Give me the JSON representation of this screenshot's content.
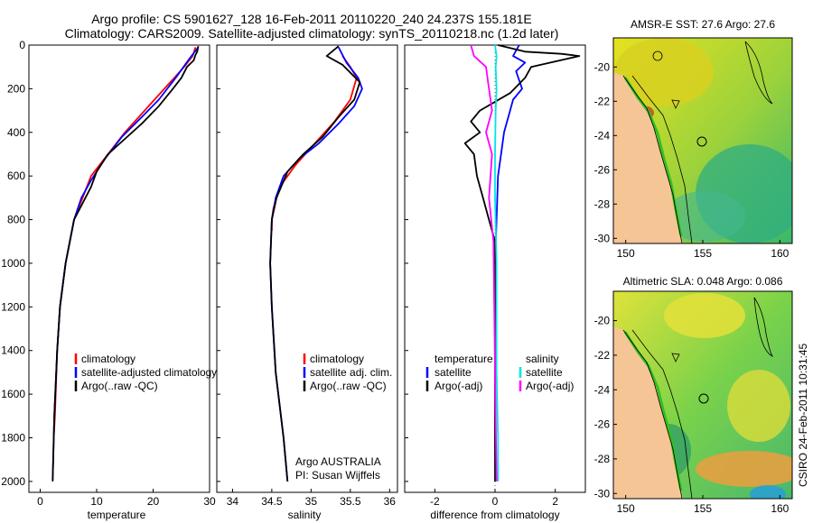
{
  "title": {
    "line1": "Argo profile: CS 5901627_128 16-Feb-2011 20110220_240 24.237S 155.181E",
    "line2": "Climatology: CARS2009. Satellite-adjusted climatology: synTS_20110218.nc (1.2d later)"
  },
  "side_stamp": "CSIRO 24-Feb-2011 10:31:45",
  "colors": {
    "climatology": "#ff0000",
    "satellite": "#0000ff",
    "argo": "#000000",
    "salinity_satellite": "#00e5e5",
    "salinity_argo_adj": "#ff00ff",
    "land": "#f5c596"
  },
  "chart_data": [
    {
      "id": "temperature",
      "type": "line",
      "xlabel": "temperature",
      "xlim": [
        -2,
        30
      ],
      "xticks": [
        "0",
        "10",
        "20",
        "30"
      ],
      "xtick_values": [
        0,
        10,
        20,
        30
      ],
      "ylim": [
        0,
        2050
      ],
      "yticks": [
        "0",
        "200",
        "400",
        "600",
        "800",
        "1000",
        "1200",
        "1400",
        "1600",
        "1800",
        "2000"
      ],
      "ytick_values": [
        0,
        200,
        400,
        600,
        800,
        1000,
        1200,
        1400,
        1600,
        1800,
        2000
      ],
      "legend": [
        "climatology",
        "satellite-adjusted climatology",
        "Argo(..raw -QC)"
      ],
      "series": [
        {
          "name": "climatology",
          "color": "#ff0000",
          "x": [
            27.5,
            27.0,
            25.5,
            22.0,
            18.5,
            15.0,
            12.0,
            9.0,
            7.5,
            6.0,
            4.5,
            3.5,
            3.0,
            2.6,
            2.4
          ],
          "y": [
            10,
            50,
            100,
            200,
            300,
            400,
            500,
            600,
            700,
            800,
            1000,
            1200,
            1400,
            1700,
            1800
          ]
        },
        {
          "name": "satellite-adjusted climatology",
          "color": "#0000ff",
          "x": [
            28.0,
            26.5,
            24.0,
            21.0,
            18.0,
            14.5,
            11.5,
            9.0,
            7.3,
            6.0,
            4.5,
            3.5,
            3.0,
            2.5,
            2.3,
            2.2
          ],
          "y": [
            10,
            60,
            150,
            250,
            330,
            420,
            520,
            620,
            700,
            800,
            1000,
            1200,
            1400,
            1700,
            1900,
            1990
          ]
        },
        {
          "name": "Argo(..raw -QC)",
          "color": "#000000",
          "x": [
            28.0,
            27.8,
            27.5,
            27.2,
            26.0,
            25.0,
            23.5,
            21.0,
            18.0,
            15.0,
            12.0,
            10.0,
            9.0,
            8.0,
            7.0,
            6.0,
            4.5,
            3.5,
            3.0,
            2.5,
            2.3,
            2.2
          ],
          "y": [
            5,
            30,
            45,
            70,
            100,
            150,
            200,
            280,
            360,
            430,
            500,
            580,
            650,
            700,
            750,
            800,
            1000,
            1200,
            1400,
            1700,
            1900,
            2000
          ]
        }
      ]
    },
    {
      "id": "salinity",
      "type": "line",
      "xlabel": "salinity",
      "xlim": [
        33.8,
        36.1
      ],
      "xticks": [
        "34",
        "34.5",
        "35",
        "35.5",
        "36"
      ],
      "xtick_values": [
        34,
        34.5,
        35,
        35.5,
        36
      ],
      "ylim": [
        0,
        2050
      ],
      "legend": [
        "climatology",
        "satellite adj. clim.",
        "Argo(..raw -QC)"
      ],
      "annotation": [
        "Argo AUSTRALIA",
        "PI: Susan Wijffels"
      ],
      "series": [
        {
          "name": "climatology",
          "color": "#ff0000",
          "x": [
            35.4,
            35.5,
            35.58,
            35.5,
            35.3,
            35.05,
            34.8,
            34.6,
            34.52,
            34.5,
            34.5
          ],
          "y": [
            50,
            100,
            150,
            250,
            350,
            450,
            550,
            650,
            750,
            800,
            850
          ]
        },
        {
          "name": "satellite adj. clim.",
          "color": "#0000ff",
          "x": [
            35.35,
            35.45,
            35.6,
            35.65,
            35.55,
            35.35,
            35.1,
            34.85,
            34.65,
            34.55,
            34.5,
            34.48,
            34.5,
            34.55,
            34.65,
            34.7
          ],
          "y": [
            10,
            80,
            150,
            200,
            280,
            360,
            450,
            520,
            600,
            700,
            800,
            1000,
            1200,
            1500,
            1800,
            2000
          ]
        },
        {
          "name": "Argo(..raw -QC)",
          "color": "#000000",
          "x": [
            35.35,
            35.2,
            35.4,
            35.62,
            35.55,
            35.35,
            35.15,
            34.9,
            34.7,
            34.56,
            34.5,
            34.48,
            34.5,
            34.55,
            34.65,
            34.7
          ],
          "y": [
            5,
            50,
            90,
            170,
            250,
            330,
            420,
            500,
            580,
            700,
            800,
            1000,
            1200,
            1500,
            1800,
            2000
          ]
        }
      ]
    },
    {
      "id": "difference",
      "type": "line",
      "xlabel": "difference from climatology",
      "xlim": [
        -3.0,
        3.0
      ],
      "xticks": [
        "-2",
        "0",
        "2"
      ],
      "xtick_values": [
        -2,
        0,
        2
      ],
      "ylim": [
        0,
        2050
      ],
      "legend_left_header": "temperature",
      "legend_right_header": "salinity",
      "legend": [
        "satellite",
        "Argo(-adj)",
        "satellite",
        "Argo(-adj)"
      ],
      "series": [
        {
          "name": "temperature satellite",
          "color": "#0000ff",
          "x": [
            0.8,
            0.6,
            1.0,
            0.7,
            0.9,
            0.6,
            0.5,
            0.3,
            0.2,
            0.1,
            0.05,
            0.0
          ],
          "y": [
            0,
            50,
            80,
            120,
            200,
            250,
            300,
            400,
            500,
            600,
            800,
            1000
          ]
        },
        {
          "name": "temperature Argo(-adj)",
          "color": "#000000",
          "x": [
            0.1,
            1.0,
            2.2,
            2.8,
            1.2,
            1.0,
            0.5,
            -0.5,
            -0.8,
            -0.5,
            -1.0,
            -0.7,
            -0.6,
            -0.4,
            -0.2,
            0.0,
            0.0,
            0.0
          ],
          "y": [
            0,
            30,
            40,
            50,
            100,
            150,
            220,
            300,
            350,
            400,
            450,
            500,
            600,
            700,
            800,
            900,
            1500,
            2000
          ]
        },
        {
          "name": "salinity satellite",
          "color": "#00e5e5",
          "x": [
            0.0,
            0.05,
            0.02,
            0.05,
            0.02,
            0.0,
            0.0,
            0.05,
            0.05,
            0.1,
            0.1
          ],
          "y": [
            0,
            50,
            100,
            200,
            300,
            500,
            700,
            1000,
            1500,
            1800,
            2000
          ]
        },
        {
          "name": "salinity Argo(-adj)",
          "color": "#ff00ff",
          "x": [
            -0.8,
            -0.7,
            -0.3,
            -0.2,
            -0.1,
            -0.3,
            -0.1,
            -0.2,
            -0.05,
            0.0,
            0.05
          ],
          "y": [
            0,
            50,
            100,
            200,
            300,
            400,
            500,
            700,
            900,
            1500,
            2000
          ]
        }
      ]
    },
    {
      "id": "sst_map",
      "type": "heatmap",
      "title": "AMSR-E SST: 27.6 Argo: 27.6",
      "xticks": [
        "150",
        "155",
        "160"
      ],
      "xtick_values": [
        150,
        155,
        160
      ],
      "yticks": [
        "-20",
        "-22",
        "-24",
        "-26",
        "-28",
        "-30"
      ],
      "ytick_values": [
        -20,
        -22,
        -24,
        -26,
        -28,
        -30
      ],
      "xlim": [
        149.2,
        160.8
      ],
      "ylim": [
        -30.3,
        -18.3
      ],
      "profile_location": [
        155.18,
        -24.24
      ]
    },
    {
      "id": "sla_map",
      "type": "heatmap",
      "title": "Altimetric SLA: 0.048 Argo: 0.086",
      "xticks": [
        "150",
        "155",
        "160"
      ],
      "xtick_values": [
        150,
        155,
        160
      ],
      "yticks": [
        "-20",
        "-22",
        "-24",
        "-26",
        "-28",
        "-30"
      ],
      "ytick_values": [
        -20,
        -22,
        -24,
        -26,
        -28,
        -30
      ],
      "xlim": [
        149.2,
        160.8
      ],
      "ylim": [
        -30.3,
        -18.3
      ],
      "profile_location": [
        155.18,
        -24.24
      ]
    }
  ]
}
